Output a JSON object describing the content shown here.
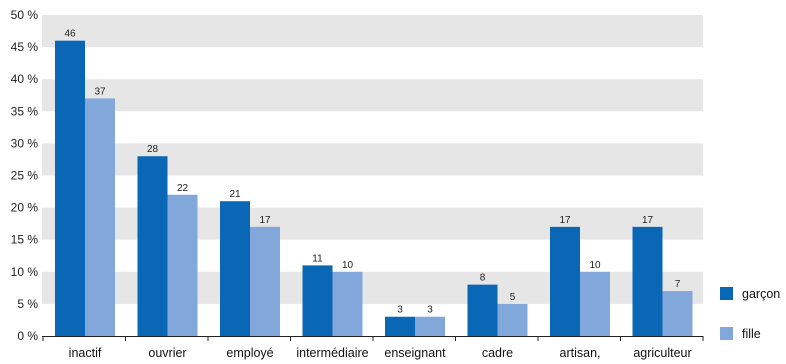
{
  "chart_data": {
    "type": "bar",
    "categories": [
      "inactif",
      "ouvrier",
      "employé",
      "intermédiaire",
      "enseignant",
      "cadre",
      "artisan,",
      "agriculteur"
    ],
    "series": [
      {
        "name": "garçon",
        "values": [
          46,
          28,
          21,
          11,
          3,
          8,
          17,
          17
        ],
        "color": "#0a67b5"
      },
      {
        "name": "fille",
        "values": [
          37,
          22,
          17,
          10,
          3,
          5,
          10,
          7
        ],
        "color": "#82a7db"
      }
    ],
    "y_ticks": [
      "0 %",
      "5 %",
      "10 %",
      "15 %",
      "20 %",
      "25 %",
      "30 %",
      "35 %",
      "40 %",
      "45 %",
      "50 %"
    ],
    "ylim": [
      0,
      50
    ],
    "grid": "alternating-bands",
    "band_color": "#e6e6e6",
    "legend_position": "right"
  }
}
